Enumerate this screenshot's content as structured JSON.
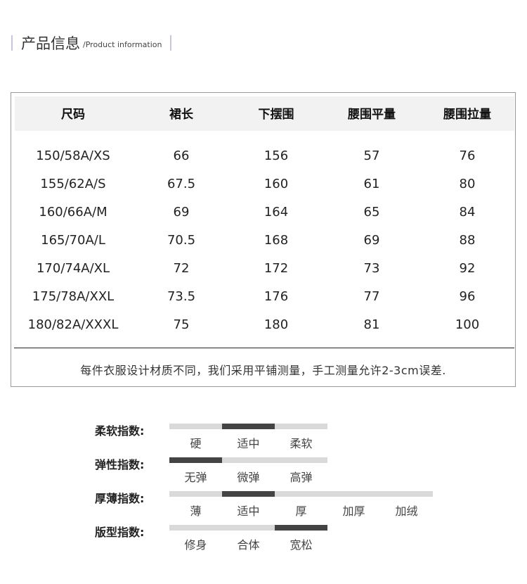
{
  "header": {
    "title": "产品信息",
    "subtitle": "Product information",
    "separator": "/"
  },
  "table": {
    "columns": [
      "尺码",
      "裙长",
      "下摆围",
      "腰围平量",
      "腰围拉量"
    ],
    "rows": [
      [
        "150/58A/XS",
        "66",
        "156",
        "57",
        "76"
      ],
      [
        "155/62A/S",
        "67.5",
        "160",
        "61",
        "80"
      ],
      [
        "160/66A/M",
        "69",
        "164",
        "65",
        "84"
      ],
      [
        "165/70A/L",
        "70.5",
        "168",
        "69",
        "88"
      ],
      [
        "170/74A/XL",
        "72",
        "172",
        "73",
        "92"
      ],
      [
        "175/78A/XXL",
        "73.5",
        "176",
        "77",
        "96"
      ],
      [
        "180/82A/XXXL",
        "75",
        "180",
        "81",
        "100"
      ]
    ],
    "note": "每件衣服设计材质不同，我们采用平铺测量，手工测量允许2-3cm误差."
  },
  "indices": [
    {
      "label": "柔软指数:",
      "options": [
        "硬",
        "适中",
        "柔软"
      ],
      "selected": 1
    },
    {
      "label": "弹性指数:",
      "options": [
        "无弹",
        "微弹",
        "高弹"
      ],
      "selected": 0
    },
    {
      "label": "厚薄指数:",
      "options": [
        "薄",
        "适中",
        "厚",
        "加厚",
        "加绒"
      ],
      "selected": 1
    },
    {
      "label": "版型指数:",
      "options": [
        "修身",
        "合体",
        "宽松"
      ],
      "selected": 2
    }
  ],
  "colors": {
    "active": "#444444",
    "inactive": "#d9d9d9",
    "accent_bar": "#c9c5dc"
  }
}
